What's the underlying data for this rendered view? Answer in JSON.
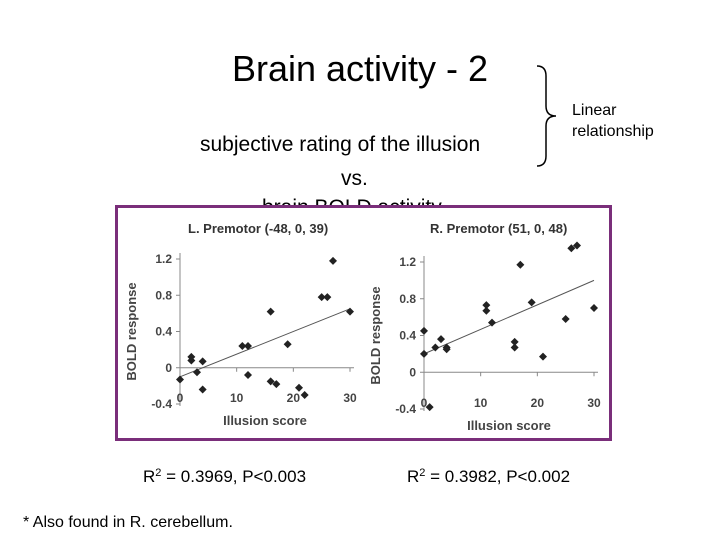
{
  "slide": {
    "title": "Brain activity - 2",
    "subtitle_line1": "subjective rating of the illusion",
    "subtitle_line2": "vs.",
    "subtitle_line3": "brain BOLD activity",
    "annotation": [
      "Linear",
      "relationship"
    ],
    "r2_left": {
      "base": "R",
      "sup": "2",
      "rest": " = 0.3969, P<0.003"
    },
    "r2_right": {
      "base": "R",
      "sup": "2",
      "rest": " = 0.3982, P<0.002"
    },
    "footnote": "* Also found in R. cerebellum.",
    "frame_color": "#7a2e7a"
  },
  "chart_data": [
    {
      "type": "scatter",
      "title": "L. Premotor (-48, 0, 39)",
      "xlabel": "Illusion score",
      "ylabel": "BOLD response",
      "xlim": [
        0,
        30
      ],
      "ylim": [
        -0.4,
        1.2
      ],
      "xticks": [
        0,
        10,
        20,
        30
      ],
      "yticks": [
        -0.4,
        0,
        0.4,
        0.8,
        1.2
      ],
      "points": [
        [
          0,
          -0.13
        ],
        [
          2,
          0.08
        ],
        [
          2,
          0.12
        ],
        [
          3,
          -0.05
        ],
        [
          4,
          0.07
        ],
        [
          4,
          -0.24
        ],
        [
          11,
          0.24
        ],
        [
          12,
          0.24
        ],
        [
          12,
          -0.08
        ],
        [
          16,
          0.62
        ],
        [
          16,
          -0.15
        ],
        [
          17,
          -0.18
        ],
        [
          19,
          0.26
        ],
        [
          21,
          -0.22
        ],
        [
          22,
          -0.3
        ],
        [
          25,
          0.78
        ],
        [
          26,
          0.78
        ],
        [
          27,
          1.18
        ],
        [
          30,
          0.62
        ]
      ],
      "fit": {
        "x": [
          0,
          30
        ],
        "y": [
          -0.1,
          0.65
        ]
      }
    },
    {
      "type": "scatter",
      "title": "R. Premotor (51, 0, 48)",
      "xlabel": "Illusion score",
      "ylabel": "BOLD response",
      "xlim": [
        0,
        30
      ],
      "ylim": [
        -0.4,
        1.2
      ],
      "xticks": [
        0,
        10,
        20,
        30
      ],
      "yticks": [
        -0.4,
        0,
        0.4,
        0.8,
        1.2
      ],
      "points": [
        [
          0,
          0.45
        ],
        [
          0,
          0.2
        ],
        [
          1,
          -0.38
        ],
        [
          2,
          0.27
        ],
        [
          3,
          0.36
        ],
        [
          4,
          0.27
        ],
        [
          4,
          0.25
        ],
        [
          11,
          0.73
        ],
        [
          11,
          0.67
        ],
        [
          12,
          0.54
        ],
        [
          16,
          0.33
        ],
        [
          16,
          0.27
        ],
        [
          17,
          1.17
        ],
        [
          19,
          0.76
        ],
        [
          21,
          0.17
        ],
        [
          25,
          0.58
        ],
        [
          26,
          1.35
        ],
        [
          27,
          1.38
        ],
        [
          30,
          0.7
        ]
      ],
      "fit": {
        "x": [
          0,
          30
        ],
        "y": [
          0.2,
          1.0
        ]
      }
    }
  ]
}
